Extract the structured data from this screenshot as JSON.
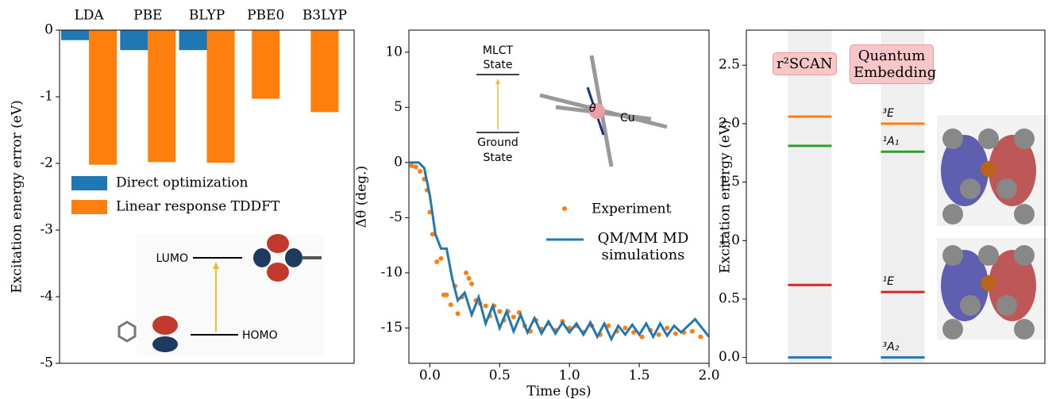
{
  "chart_data": [
    {
      "type": "bar",
      "categories": [
        "LDA",
        "PBE",
        "BLYP",
        "PBE0",
        "B3LYP"
      ],
      "series": [
        {
          "name": "Direct optimization",
          "color": "#1f77b4",
          "values": [
            -0.15,
            -0.3,
            -0.3,
            null,
            null
          ]
        },
        {
          "name": "Linear response TDDFT",
          "color": "#ff7f0e",
          "values": [
            -2.02,
            -1.98,
            -1.99,
            -1.03,
            -1.23
          ]
        }
      ],
      "ylabel": "Excitation energy error (eV)",
      "ylim": [
        -5,
        0
      ],
      "yticks": [
        0,
        -1,
        -2,
        -3,
        -4,
        -5
      ],
      "inset": {
        "upper": "LUMO",
        "lower": "HOMO"
      }
    },
    {
      "type": "line",
      "xlabel": "Time (ps)",
      "ylabel": "Δθ (deg.)",
      "xlim": [
        -0.15,
        2.0
      ],
      "xticks": [
        {
          "value": 0,
          "label": "0.0"
        },
        0.5,
        {
          "value": 1,
          "label": "1.0"
        },
        1.5,
        {
          "value": 2,
          "label": "2.0"
        }
      ],
      "ylim": [
        -18.2,
        12
      ],
      "yticks": [
        -15,
        -10,
        -5,
        0,
        5,
        10
      ],
      "series": [
        {
          "name": "Experiment",
          "kind": "scatter",
          "color": "#ff7f0e",
          "x": [
            -0.13,
            -0.1,
            -0.07,
            -0.04,
            -0.02,
            0.0,
            0.02,
            0.05,
            0.08,
            0.1,
            0.12,
            0.15,
            0.18,
            0.2,
            0.23,
            0.26,
            0.28,
            0.3,
            0.33,
            0.36,
            0.4,
            0.43,
            0.46,
            0.5,
            0.53,
            0.56,
            0.6,
            0.64,
            0.68,
            0.72,
            0.76,
            0.8,
            0.85,
            0.9,
            0.95,
            1.0,
            1.05,
            1.1,
            1.16,
            1.22,
            1.28,
            1.34,
            1.4,
            1.46,
            1.52,
            1.58,
            1.64,
            1.7,
            1.76,
            1.82,
            1.88,
            1.94
          ],
          "values": [
            -0.3,
            -0.4,
            -0.8,
            -1.5,
            -2.5,
            -4.5,
            -6.5,
            -9.0,
            -8.7,
            -12.0,
            -12.0,
            -12.9,
            -11.2,
            -13.7,
            -12.2,
            -10.0,
            -10.5,
            -11.0,
            -12.5,
            -12.8,
            -13.0,
            -13.9,
            -13.0,
            -13.5,
            -14.3,
            -13.5,
            -14.0,
            -13.6,
            -14.8,
            -15.3,
            -14.3,
            -15.1,
            -14.6,
            -15.2,
            -14.4,
            -15.0,
            -14.8,
            -15.4,
            -14.8,
            -15.6,
            -14.8,
            -15.3,
            -15.0,
            -15.4,
            -15.8,
            -15.2,
            -15.6,
            -15.0,
            -15.5,
            -15.4,
            -15.3,
            -15.8
          ]
        },
        {
          "name": "QM/MM MD simulations",
          "kind": "line",
          "color": "#1f77b4",
          "x": [
            -0.15,
            -0.08,
            -0.04,
            0.0,
            0.04,
            0.08,
            0.12,
            0.16,
            0.2,
            0.25,
            0.3,
            0.35,
            0.4,
            0.45,
            0.5,
            0.55,
            0.6,
            0.65,
            0.7,
            0.75,
            0.8,
            0.85,
            0.9,
            0.95,
            1.0,
            1.05,
            1.1,
            1.15,
            1.2,
            1.25,
            1.3,
            1.35,
            1.4,
            1.45,
            1.5,
            1.55,
            1.6,
            1.65,
            1.7,
            1.75,
            1.8,
            1.85,
            1.9,
            1.95,
            2.0
          ],
          "values": [
            0,
            0,
            -0.5,
            -3.0,
            -6.5,
            -7.8,
            -7.8,
            -10.5,
            -12.5,
            -11.8,
            -13.8,
            -12.2,
            -14.6,
            -13.0,
            -15.0,
            -13.5,
            -15.3,
            -13.8,
            -15.4,
            -14.1,
            -15.5,
            -14.4,
            -15.5,
            -14.5,
            -15.4,
            -14.6,
            -15.6,
            -14.5,
            -15.8,
            -14.6,
            -16.0,
            -14.8,
            -15.6,
            -14.7,
            -15.6,
            -14.6,
            -15.8,
            -14.6,
            -15.7,
            -14.8,
            -15.4,
            -14.8,
            -14.2,
            -15.0,
            -15.8
          ]
        }
      ],
      "inset": {
        "upper": [
          "MLCT",
          "State"
        ],
        "lower": [
          "Ground",
          "State"
        ],
        "angle": "θ",
        "metal": "Cu"
      }
    },
    {
      "type": "levels",
      "ylabel": "Excitation energy (eV)",
      "ylim": [
        -0.05,
        2.8
      ],
      "yticks": [
        {
          "value": 0,
          "label": "0.0"
        },
        0.5,
        {
          "value": 1,
          "label": "1.0"
        },
        1.5,
        {
          "value": 2,
          "label": "2.0"
        },
        2.5
      ],
      "colors": [
        "#ff7f0e",
        "#2ca02c",
        "#d62728",
        "#1f77b4"
      ],
      "series": [
        {
          "name": "r²SCAN",
          "values": [
            2.06,
            1.81,
            0.62,
            0.0
          ]
        },
        {
          "name": "Quantum Embedding",
          "values": [
            2.0,
            1.76,
            0.56,
            0.0
          ],
          "state_labels": [
            "³E",
            "¹A₁",
            "¹E",
            "³A₂"
          ]
        }
      ]
    }
  ]
}
